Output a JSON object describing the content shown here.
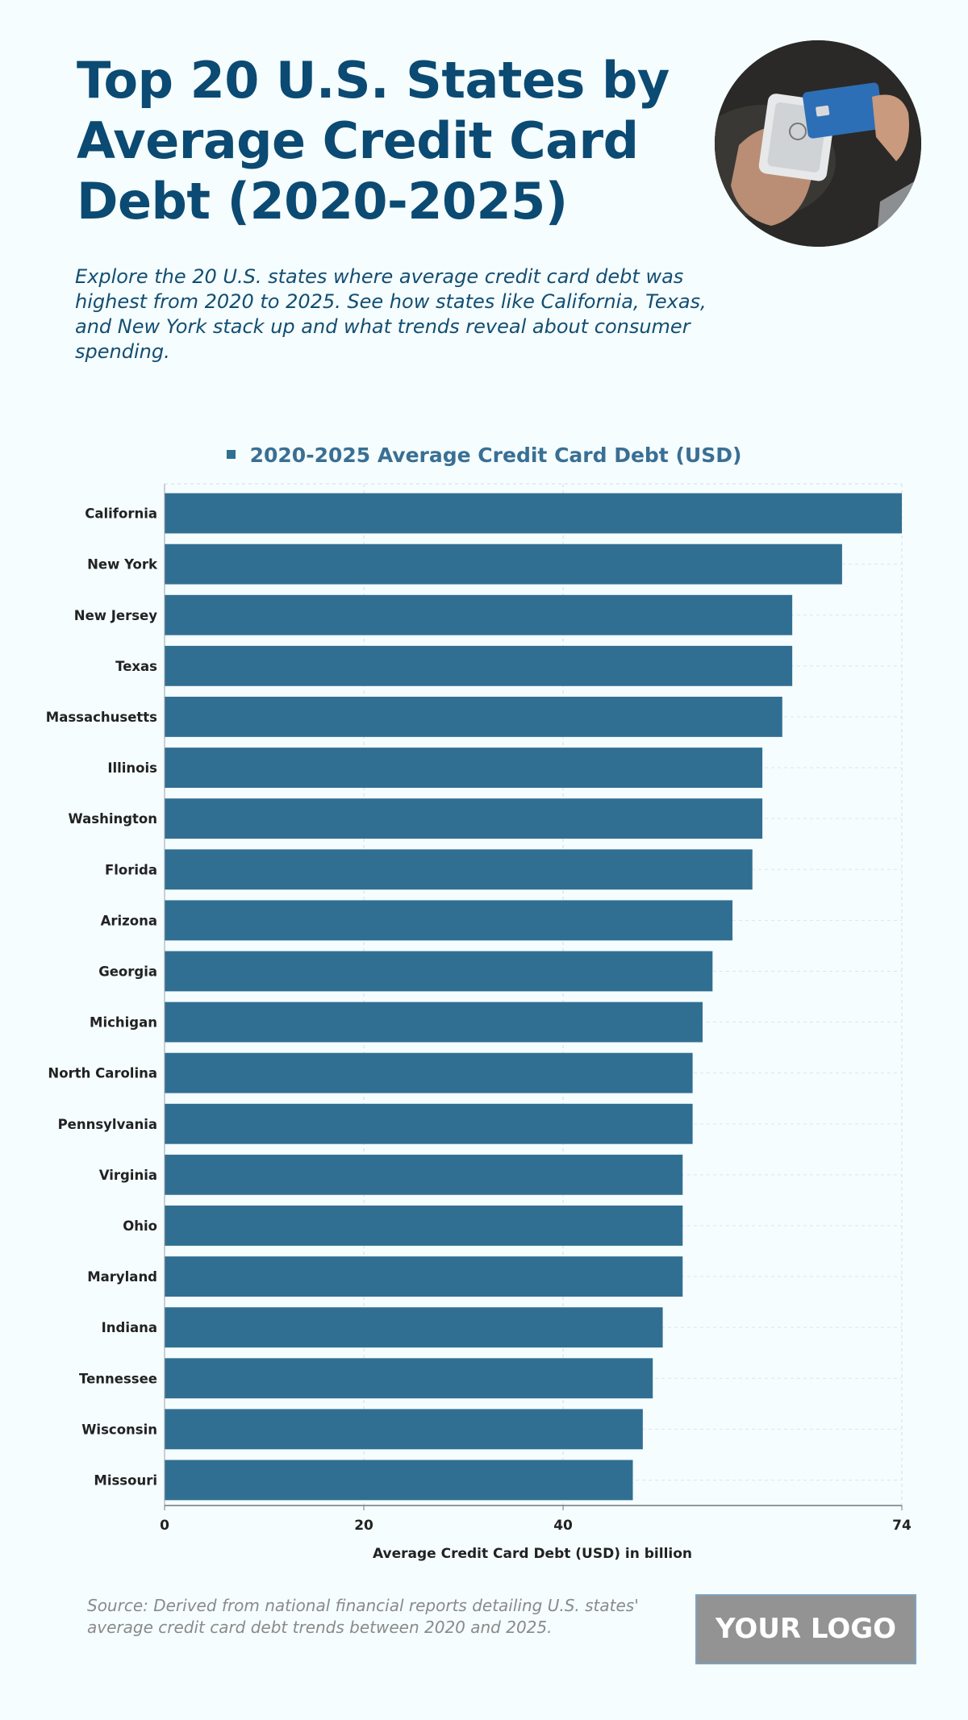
{
  "header": {
    "title": "Top 20 U.S. States by Average Credit Card Debt (2020-2025)",
    "subtitle": "Explore the 20 U.S. states where average credit card debt was highest from 2020 to 2025. See how states like California, Texas, and New York stack up and what trends reveal about consumer spending."
  },
  "footer": {
    "source": "Source: Derived from national financial reports detailing U.S. states' average credit card debt trends between 2020 and 2025.",
    "logo": "YOUR LOGO"
  },
  "colors": {
    "bar": "#316f92",
    "title": "#0b4a72",
    "background": "#f5fdfe"
  },
  "chart_data": {
    "type": "bar",
    "orientation": "horizontal",
    "legend": "2020-2025 Average Credit Card Debt (USD)",
    "legend_position": "top-center",
    "xlabel": "Average Credit Card Debt (USD) in billion",
    "xlim": [
      0,
      74
    ],
    "xticks": [
      0,
      20,
      40,
      74
    ],
    "grid": true,
    "categories": [
      "California",
      "New York",
      "New Jersey",
      "Texas",
      "Massachusetts",
      "Illinois",
      "Washington",
      "Florida",
      "Arizona",
      "Georgia",
      "Michigan",
      "North Carolina",
      "Pennsylvania",
      "Virginia",
      "Ohio",
      "Maryland",
      "Indiana",
      "Tennessee",
      "Wisconsin",
      "Missouri"
    ],
    "series": [
      {
        "name": "2020-2025 Average Credit Card Debt (USD)",
        "values": [
          74,
          68,
          63,
          63,
          62,
          60,
          60,
          59,
          57,
          55,
          54,
          53,
          53,
          52,
          52,
          52,
          50,
          49,
          48,
          47
        ]
      }
    ]
  }
}
